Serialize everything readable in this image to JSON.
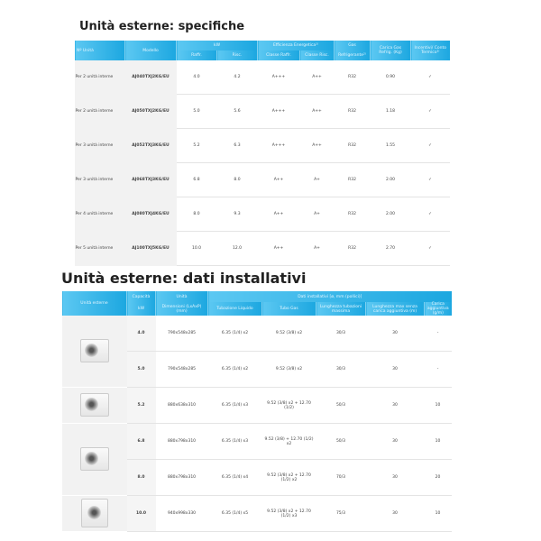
{
  "section1": {
    "title": "Unità esterne: specifiche",
    "headers": {
      "units": "Nº Unità",
      "model": "Modello",
      "kw": "kW",
      "kw_cool": "Raffr.",
      "kw_heat": "Risc.",
      "eff": "Efficienza Energetica¹⁾",
      "eff_cool": "Classe Raffr.",
      "eff_heat": "Classe Risc.",
      "gas": "Gas",
      "gas_sub": "Refrigerante²⁾",
      "charge": "Carica Gas Refrig. (Kg)",
      "incentives": "Incentivi/ Conto Termico³⁾"
    },
    "rows": [
      [
        "Per 2 unità interne",
        "AJ040TXJ2KG/EU",
        "4.0",
        "4.2",
        "A+++",
        "A++",
        "R32",
        "0.90",
        "✓"
      ],
      [
        "Per 2 unità interne",
        "AJ050TXJ2KG/EU",
        "5.0",
        "5.6",
        "A+++",
        "A++",
        "R32",
        "1.18",
        "✓"
      ],
      [
        "Per 3 unità interne",
        "AJ052TXJ3KG/EU",
        "5.2",
        "6.3",
        "A+++",
        "A++",
        "R32",
        "1.55",
        "✓"
      ],
      [
        "Per 3 unità interne",
        "AJ068TXJ3KG/EU",
        "6.8",
        "8.0",
        "A++",
        "A+",
        "R32",
        "2.00",
        "✓"
      ],
      [
        "Per 4 unità interne",
        "AJ080TXJ4KG/EU",
        "8.0",
        "9.3",
        "A++",
        "A+",
        "R32",
        "2.00",
        "✓"
      ],
      [
        "Per 5 unità interne",
        "AJ100TXJ5KG/EU",
        "10.0",
        "12.0",
        "A++",
        "A+",
        "R32",
        "2.70",
        "✓"
      ]
    ]
  },
  "section2": {
    "title": "Unità esterne: dati installativi",
    "headers": {
      "outdoor": "Unità esterne",
      "capacity": "Capacità",
      "capacity_unit": "kW",
      "unit": "Unità",
      "dimensions": "Dimensioni (LxAxP) (mm)",
      "install": "Dati installativi [ø, mm (pollici)]",
      "liquid": "Tubazione Liquido",
      "gas": "Tubo Gas",
      "max_len": "Lunghezza tubazioni massima",
      "len_no_charge": "Lunghezza max senza carica aggiuntiva (m)",
      "extra_charge": "Carica aggiuntiva (g/m)"
    },
    "rows": [
      [
        "4.0",
        "790x548x285",
        "6.35 (1/4) x2",
        "9.52 (3/8) x2",
        "30/3",
        "30",
        "-"
      ],
      [
        "5.0",
        "790x548x285",
        "6.35 (1/4) x2",
        "9.52 (3/8) x2",
        "30/3",
        "30",
        "-"
      ],
      [
        "5.2",
        "880x638x310",
        "6.35 (1/4) x3",
        "9.52 (3/8) x2 + 12.70 (1/2)",
        "50/3",
        "30",
        "10"
      ],
      [
        "6.8",
        "880x798x310",
        "6.35 (1/4) x3",
        "9.52 (3/8) + 12.70 (1/2) x2",
        "50/3",
        "30",
        "10"
      ],
      [
        "8.0",
        "880x798x310",
        "6.35 (1/4) x4",
        "9.52 (3/8) x2 + 12.70 (1/2) x2",
        "70/3",
        "30",
        "20"
      ],
      [
        "10.0",
        "940x998x330",
        "6.35 (1/4) x5",
        "9.52 (3/8) x2 + 12.70 (1/2) x3",
        "75/3",
        "30",
        "10"
      ]
    ]
  }
}
